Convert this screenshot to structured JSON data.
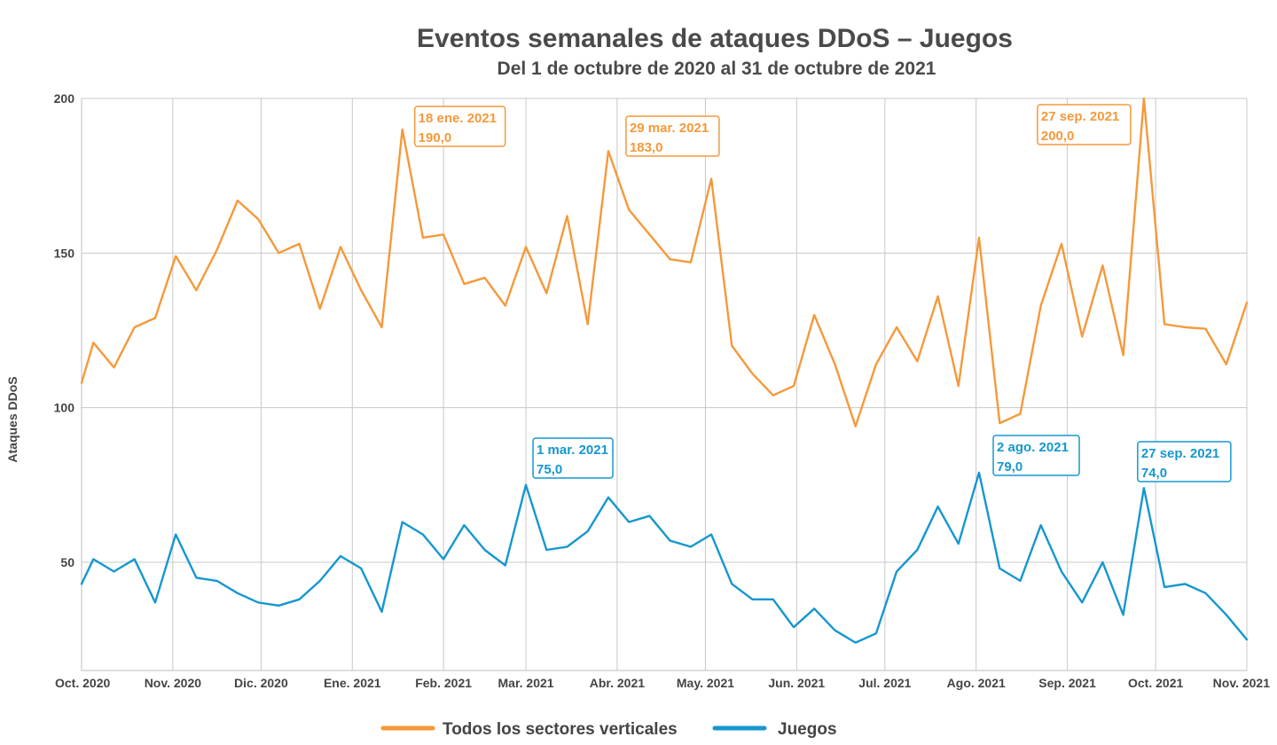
{
  "chart_data": {
    "type": "line",
    "title": "Eventos semanales de ataques DDoS – Juegos",
    "subtitle": "Del 1 de octubre de 2020 al 31 de octubre de 2021",
    "ylabel": "Ataques DDoS",
    "xlabel": "",
    "ylim": [
      15,
      200
    ],
    "yticks": [
      50,
      100,
      150,
      200
    ],
    "xlim": [
      "2020-10-01",
      "2021-11-01"
    ],
    "xticks": [
      {
        "date": "2020-10-01",
        "label": "Oct. 2020"
      },
      {
        "date": "2020-11-01",
        "label": "Nov. 2020"
      },
      {
        "date": "2020-12-01",
        "label": "Dic. 2020"
      },
      {
        "date": "2021-01-01",
        "label": "Ene. 2021"
      },
      {
        "date": "2021-02-01",
        "label": "Feb. 2021"
      },
      {
        "date": "2021-03-01",
        "label": "Mar. 2021"
      },
      {
        "date": "2021-04-01",
        "label": "Abr. 2021"
      },
      {
        "date": "2021-05-01",
        "label": "May. 2021"
      },
      {
        "date": "2021-06-01",
        "label": "Jun. 2021"
      },
      {
        "date": "2021-07-01",
        "label": "Jul. 2021"
      },
      {
        "date": "2021-08-01",
        "label": "Ago. 2021"
      },
      {
        "date": "2021-09-01",
        "label": "Sep. 2021"
      },
      {
        "date": "2021-10-01",
        "label": "Oct. 2021"
      },
      {
        "date": "2021-11-01",
        "label": "Nov. 2021"
      }
    ],
    "grid": true,
    "legend_position": "bottom",
    "series": [
      {
        "name": "Todos los sectores verticales",
        "color": "#f5993a",
        "points": [
          [
            "2020-10-01",
            108
          ],
          [
            "2020-10-05",
            121
          ],
          [
            "2020-10-12",
            113
          ],
          [
            "2020-10-19",
            126
          ],
          [
            "2020-10-26",
            129
          ],
          [
            "2020-11-02",
            149
          ],
          [
            "2020-11-09",
            138
          ],
          [
            "2020-11-16",
            151
          ],
          [
            "2020-11-23",
            167
          ],
          [
            "2020-11-30",
            161
          ],
          [
            "2020-12-07",
            150
          ],
          [
            "2020-12-14",
            153
          ],
          [
            "2020-12-21",
            132
          ],
          [
            "2020-12-28",
            152
          ],
          [
            "2021-01-04",
            138
          ],
          [
            "2021-01-11",
            126
          ],
          [
            "2021-01-18",
            190
          ],
          [
            "2021-01-25",
            155
          ],
          [
            "2021-02-01",
            156
          ],
          [
            "2021-02-08",
            140
          ],
          [
            "2021-02-15",
            142
          ],
          [
            "2021-02-22",
            133
          ],
          [
            "2021-03-01",
            152
          ],
          [
            "2021-03-08",
            137
          ],
          [
            "2021-03-15",
            162
          ],
          [
            "2021-03-22",
            127
          ],
          [
            "2021-03-29",
            183
          ],
          [
            "2021-04-05",
            164
          ],
          [
            "2021-04-12",
            156
          ],
          [
            "2021-04-19",
            148
          ],
          [
            "2021-04-26",
            147
          ],
          [
            "2021-05-03",
            174
          ],
          [
            "2021-05-10",
            120
          ],
          [
            "2021-05-17",
            111
          ],
          [
            "2021-05-24",
            104
          ],
          [
            "2021-05-31",
            107
          ],
          [
            "2021-06-07",
            130
          ],
          [
            "2021-06-14",
            114
          ],
          [
            "2021-06-21",
            94
          ],
          [
            "2021-06-28",
            114
          ],
          [
            "2021-07-05",
            126
          ],
          [
            "2021-07-12",
            115
          ],
          [
            "2021-07-19",
            136
          ],
          [
            "2021-07-26",
            107
          ],
          [
            "2021-08-02",
            155
          ],
          [
            "2021-08-09",
            95
          ],
          [
            "2021-08-16",
            98
          ],
          [
            "2021-08-23",
            133
          ],
          [
            "2021-08-30",
            153
          ],
          [
            "2021-09-06",
            123
          ],
          [
            "2021-09-13",
            146
          ],
          [
            "2021-09-20",
            117
          ],
          [
            "2021-09-27",
            200
          ],
          [
            "2021-10-04",
            127
          ],
          [
            "2021-10-11",
            126
          ],
          [
            "2021-10-18",
            125.5
          ],
          [
            "2021-10-25",
            114
          ],
          [
            "2021-11-01",
            134
          ]
        ]
      },
      {
        "name": "Juegos",
        "color": "#1597cf",
        "points": [
          [
            "2020-10-01",
            43
          ],
          [
            "2020-10-05",
            51
          ],
          [
            "2020-10-12",
            47
          ],
          [
            "2020-10-19",
            51
          ],
          [
            "2020-10-26",
            37
          ],
          [
            "2020-11-02",
            59
          ],
          [
            "2020-11-09",
            45
          ],
          [
            "2020-11-16",
            44
          ],
          [
            "2020-11-23",
            40
          ],
          [
            "2020-11-30",
            37
          ],
          [
            "2020-12-07",
            36
          ],
          [
            "2020-12-14",
            38
          ],
          [
            "2020-12-21",
            44
          ],
          [
            "2020-12-28",
            52
          ],
          [
            "2021-01-04",
            48
          ],
          [
            "2021-01-11",
            34
          ],
          [
            "2021-01-18",
            63
          ],
          [
            "2021-01-25",
            59
          ],
          [
            "2021-02-01",
            51
          ],
          [
            "2021-02-08",
            62
          ],
          [
            "2021-02-15",
            54
          ],
          [
            "2021-02-22",
            49
          ],
          [
            "2021-03-01",
            75
          ],
          [
            "2021-03-08",
            54
          ],
          [
            "2021-03-15",
            55
          ],
          [
            "2021-03-22",
            60
          ],
          [
            "2021-03-29",
            71
          ],
          [
            "2021-04-05",
            63
          ],
          [
            "2021-04-12",
            65
          ],
          [
            "2021-04-19",
            57
          ],
          [
            "2021-04-26",
            55
          ],
          [
            "2021-05-03",
            59
          ],
          [
            "2021-05-10",
            43
          ],
          [
            "2021-05-17",
            38
          ],
          [
            "2021-05-24",
            38
          ],
          [
            "2021-05-31",
            29
          ],
          [
            "2021-06-07",
            35
          ],
          [
            "2021-06-14",
            28
          ],
          [
            "2021-06-21",
            24
          ],
          [
            "2021-06-28",
            27
          ],
          [
            "2021-07-05",
            47
          ],
          [
            "2021-07-12",
            54
          ],
          [
            "2021-07-19",
            68
          ],
          [
            "2021-07-26",
            56
          ],
          [
            "2021-08-02",
            79
          ],
          [
            "2021-08-09",
            48
          ],
          [
            "2021-08-16",
            44
          ],
          [
            "2021-08-23",
            62
          ],
          [
            "2021-08-30",
            47
          ],
          [
            "2021-09-06",
            37
          ],
          [
            "2021-09-13",
            50
          ],
          [
            "2021-09-20",
            33
          ],
          [
            "2021-09-27",
            74
          ],
          [
            "2021-10-04",
            42
          ],
          [
            "2021-10-11",
            43
          ],
          [
            "2021-10-18",
            40
          ],
          [
            "2021-10-25",
            33
          ],
          [
            "2021-11-01",
            25
          ]
        ]
      }
    ],
    "annotations": [
      {
        "series": 0,
        "date": "2021-01-18",
        "label": "18 ene. 2021",
        "value": "190,0"
      },
      {
        "series": 0,
        "date": "2021-03-29",
        "label": "29 mar. 2021",
        "value": "183,0"
      },
      {
        "series": 0,
        "date": "2021-09-27",
        "label": "27 sep. 2021",
        "value": "200,0"
      },
      {
        "series": 1,
        "date": "2021-03-01",
        "label": "1 mar. 2021",
        "value": "75,0"
      },
      {
        "series": 1,
        "date": "2021-08-02",
        "label": "2 ago. 2021",
        "value": "79,0"
      },
      {
        "series": 1,
        "date": "2021-09-27",
        "label": "27 sep. 2021",
        "value": "74,0"
      }
    ]
  }
}
